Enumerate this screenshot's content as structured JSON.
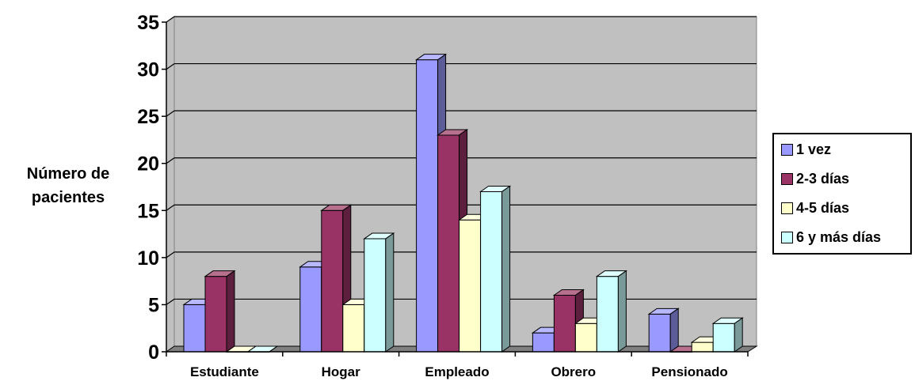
{
  "chart_data": {
    "type": "bar",
    "title": "",
    "xlabel": "",
    "ylabel_lines": [
      "Número de",
      "pacientes"
    ],
    "categories": [
      "Estudiante",
      "Hogar",
      "Empleado",
      "Obrero",
      "Pensionado"
    ],
    "series": [
      {
        "name": "1 vez",
        "values": [
          5,
          9,
          31,
          2,
          4
        ]
      },
      {
        "name": "2-3 días",
        "values": [
          8,
          15,
          23,
          6,
          0
        ]
      },
      {
        "name": "4-5 días",
        "values": [
          0,
          5,
          14,
          3,
          1
        ]
      },
      {
        "name": "6 y más días",
        "values": [
          0,
          12,
          17,
          8,
          3
        ]
      }
    ],
    "ylim": [
      0,
      35
    ],
    "yticks": [
      0,
      5,
      10,
      15,
      20,
      25,
      30,
      35
    ],
    "grid": true,
    "legend_position": "right",
    "three_d": true
  },
  "colors": {
    "series": [
      "#9999ff",
      "#993366",
      "#ffffcc",
      "#ccffff"
    ],
    "series_side": [
      "#5c5c99",
      "#5c1f3d",
      "#99997a",
      "#7a9999"
    ],
    "series_top": [
      "#b8b8ff",
      "#b8708f",
      "#ffffe0",
      "#e0ffff"
    ],
    "plot_wall": "#c0c0c0",
    "floor": "#808080",
    "gridline": "#000000"
  }
}
